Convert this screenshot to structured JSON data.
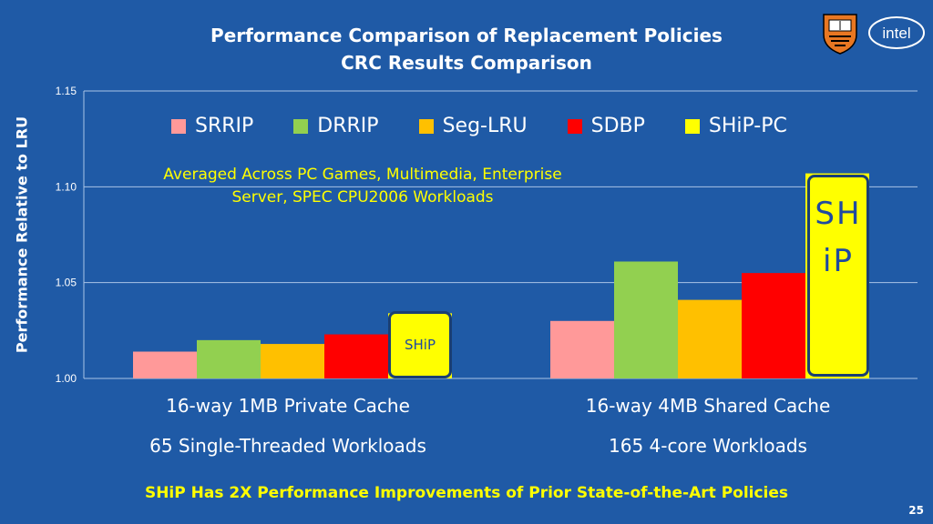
{
  "title_line1": "Performance Comparison of Replacement Policies",
  "title_line2": "CRC Results Comparison",
  "logos": {
    "left": "princeton-shield-logo",
    "right": "intel-logo",
    "intel_text": "intel"
  },
  "note_line1": "Averaged Across PC Games, Multimedia, Enterprise",
  "note_line2": "Server, SPEC CPU2006 Workloads",
  "callout_small": "SHiP",
  "callout_big": "SHiP",
  "footer": "SHiP Has 2X Performance Improvements of Prior State-of-the-Art Policies",
  "page_number": "25",
  "colors": {
    "background": "#1f5aa6",
    "SRRIP": "#ff9999",
    "DRRIP": "#92d050",
    "Seg-LRU": "#ffc000",
    "SDBP": "#ff0000",
    "SHiP-PC": "#ffff00"
  },
  "chart_data": {
    "type": "bar",
    "title": "",
    "ylabel": "Performance Relative to LRU",
    "xlabel": "",
    "ylim": [
      1.0,
      1.15
    ],
    "yticks": [
      "1.00",
      "1.05",
      "1.10",
      "1.15"
    ],
    "grid": true,
    "legend_position": "top",
    "categories": [
      {
        "line1": "16-way 1MB Private Cache",
        "line2": "65 Single-Threaded Workloads"
      },
      {
        "line1": "16-way 4MB Shared Cache",
        "line2": "165 4-core Workloads"
      }
    ],
    "series": [
      {
        "name": "SRRIP",
        "values": [
          1.014,
          1.03
        ]
      },
      {
        "name": "DRRIP",
        "values": [
          1.02,
          1.061
        ]
      },
      {
        "name": "Seg-LRU",
        "values": [
          1.018,
          1.041
        ]
      },
      {
        "name": "SDBP",
        "values": [
          1.023,
          1.055
        ]
      },
      {
        "name": "SHiP-PC",
        "values": [
          1.034,
          1.107
        ]
      }
    ]
  }
}
